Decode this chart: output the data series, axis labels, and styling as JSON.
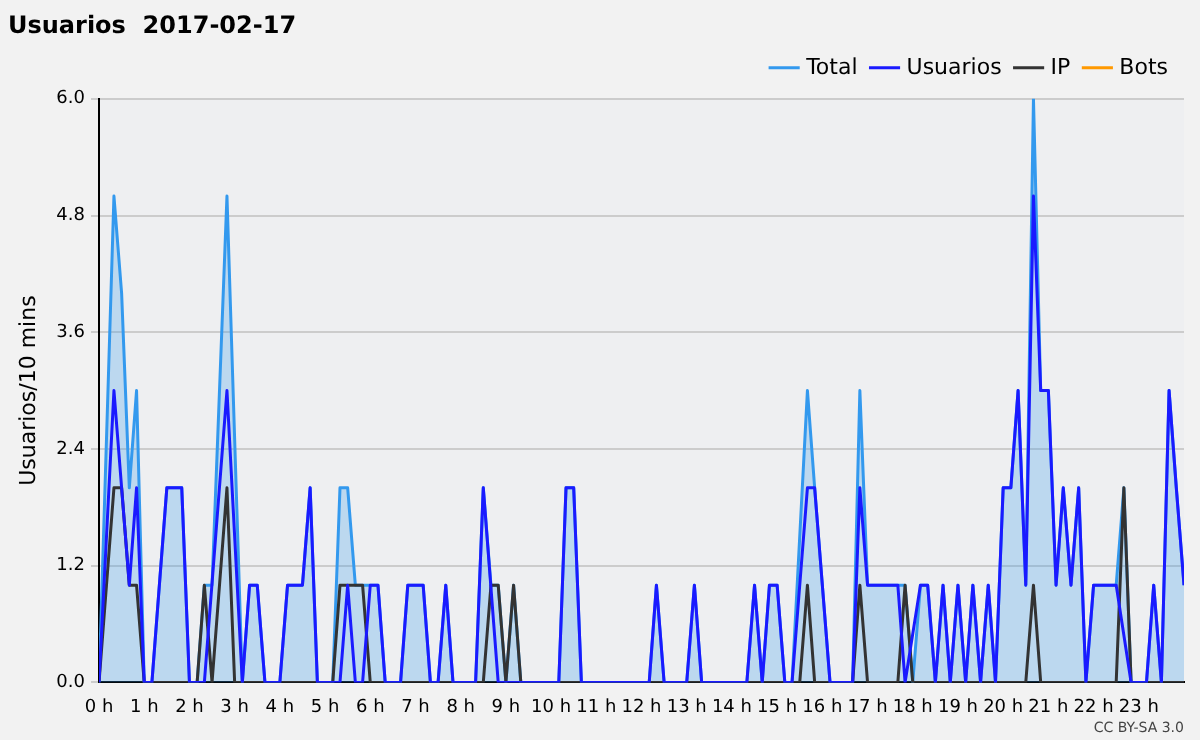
{
  "chart_data": {
    "type": "line",
    "title": "Usuarios  2017-02-17",
    "ylabel": "Usuarios/10 mins",
    "xlim": [
      0,
      24
    ],
    "xticks": [
      {
        "value": 0,
        "label": "0 h"
      },
      {
        "value": 1,
        "label": "1 h"
      },
      {
        "value": 2,
        "label": "2 h"
      },
      {
        "value": 3,
        "label": "3 h"
      },
      {
        "value": 4,
        "label": "4 h"
      },
      {
        "value": 5,
        "label": "5 h"
      },
      {
        "value": 6,
        "label": "6 h"
      },
      {
        "value": 7,
        "label": "7 h"
      },
      {
        "value": 8,
        "label": "8 h"
      },
      {
        "value": 9,
        "label": "9 h"
      },
      {
        "value": 10,
        "label": "10 h"
      },
      {
        "value": 11,
        "label": "11 h"
      },
      {
        "value": 12,
        "label": "12 h"
      },
      {
        "value": 13,
        "label": "13 h"
      },
      {
        "value": 14,
        "label": "14 h"
      },
      {
        "value": 15,
        "label": "15 h"
      },
      {
        "value": 16,
        "label": "16 h"
      },
      {
        "value": 17,
        "label": "17 h"
      },
      {
        "value": 18,
        "label": "18 h"
      },
      {
        "value": 19,
        "label": "19 h"
      },
      {
        "value": 20,
        "label": "20 h"
      },
      {
        "value": 21,
        "label": "21 h"
      },
      {
        "value": 22,
        "label": "22 h"
      },
      {
        "value": 23,
        "label": "23 h"
      }
    ],
    "ylim": [
      0,
      6
    ],
    "yticks": [
      {
        "value": 0,
        "label": "0.0"
      },
      {
        "value": 1.2,
        "label": "1.2"
      },
      {
        "value": 2.4,
        "label": "2.4"
      },
      {
        "value": 3.6,
        "label": "3.6"
      },
      {
        "value": 4.8,
        "label": "4.8"
      },
      {
        "value": 6,
        "label": "6.0"
      }
    ],
    "grid": "y",
    "legend": "top right",
    "annotations": [
      "CC BY-SA 3.0"
    ],
    "series": [
      {
        "name": "Total",
        "type": "area",
        "color": "#3399ee",
        "x": [
          0,
          0.33,
          0.5,
          0.67,
          0.83,
          1,
          1.17,
          1.5,
          1.83,
          2,
          2.17,
          2.33,
          2.5,
          2.83,
          3.17,
          3.33,
          3.5,
          3.67,
          4,
          4.17,
          4.5,
          4.67,
          4.83,
          5.17,
          5.33,
          5.5,
          5.67,
          6.17,
          6.33,
          6.67,
          6.83,
          7.17,
          7.33,
          7.5,
          7.67,
          7.83,
          8.33,
          8.5,
          8.67,
          8.83,
          9,
          9.17,
          9.33,
          10.17,
          10.33,
          10.5,
          10.67,
          12.17,
          12.33,
          12.5,
          13,
          13.17,
          13.33,
          14.33,
          14.5,
          14.67,
          14.83,
          15,
          15.17,
          15.33,
          15.67,
          15.83,
          16.17,
          16.67,
          16.83,
          17,
          17.67,
          17.83,
          18,
          18.17,
          18.33,
          18.5,
          18.67,
          18.83,
          19,
          19.17,
          19.33,
          19.5,
          19.67,
          19.83,
          20,
          20.17,
          20.33,
          20.5,
          20.67,
          20.83,
          21,
          21.17,
          21.33,
          21.5,
          21.67,
          21.83,
          22,
          22.5,
          22.67,
          22.83,
          23.17,
          23.33,
          23.5,
          23.67,
          23.83,
          24
        ],
        "values": [
          0,
          5,
          4,
          2,
          3,
          0,
          0,
          2,
          2,
          0,
          0,
          1,
          1,
          5,
          0,
          1,
          1,
          0,
          0,
          1,
          1,
          2,
          0,
          0,
          2,
          2,
          1,
          1,
          0,
          0,
          1,
          1,
          0,
          0,
          1,
          0,
          0,
          2,
          1,
          1,
          0,
          1,
          0,
          0,
          2,
          2,
          0,
          0,
          1,
          0,
          0,
          1,
          0,
          0,
          1,
          0,
          1,
          1,
          0,
          0,
          3,
          2,
          0,
          0,
          3,
          1,
          1,
          1,
          0,
          1,
          1,
          0,
          1,
          0,
          1,
          0,
          1,
          0,
          1,
          0,
          2,
          2,
          3,
          1,
          6,
          3,
          3,
          1,
          2,
          1,
          2,
          0,
          1,
          1,
          2,
          0,
          0,
          1,
          0,
          3,
          2,
          1
        ]
      },
      {
        "name": "Usuarios",
        "type": "line",
        "color": "#1a1aff",
        "x": [
          0,
          0.33,
          0.67,
          0.83,
          1,
          1.17,
          1.5,
          1.83,
          2,
          2.33,
          2.83,
          3.17,
          3.33,
          3.5,
          3.67,
          4,
          4.17,
          4.5,
          4.67,
          4.83,
          5.33,
          5.5,
          5.67,
          5.83,
          6,
          6.17,
          6.33,
          6.67,
          6.83,
          7.17,
          7.33,
          7.5,
          7.67,
          7.83,
          8.33,
          8.5,
          8.83,
          10.17,
          10.33,
          10.5,
          10.67,
          12.17,
          12.33,
          12.5,
          13,
          13.17,
          13.33,
          14.33,
          14.5,
          14.67,
          14.83,
          15,
          15.17,
          15.33,
          15.67,
          15.83,
          16.17,
          16.67,
          16.83,
          17,
          17.67,
          17.83,
          18.17,
          18.33,
          18.5,
          18.67,
          18.83,
          19,
          19.17,
          19.33,
          19.5,
          19.67,
          19.83,
          20,
          20.17,
          20.33,
          20.5,
          20.67,
          20.83,
          21,
          21.17,
          21.33,
          21.5,
          21.67,
          21.83,
          22,
          22.5,
          22.83,
          23.17,
          23.33,
          23.5,
          23.67,
          23.83,
          24
        ],
        "values": [
          0,
          3,
          1,
          2,
          0,
          0,
          2,
          2,
          0,
          0,
          3,
          0,
          1,
          1,
          0,
          0,
          1,
          1,
          2,
          0,
          0,
          1,
          0,
          0,
          1,
          1,
          0,
          0,
          1,
          1,
          0,
          0,
          1,
          0,
          0,
          2,
          0,
          0,
          2,
          2,
          0,
          0,
          1,
          0,
          0,
          1,
          0,
          0,
          1,
          0,
          1,
          1,
          0,
          0,
          2,
          2,
          0,
          0,
          2,
          1,
          1,
          0,
          1,
          1,
          0,
          1,
          0,
          1,
          0,
          1,
          0,
          1,
          0,
          2,
          2,
          3,
          1,
          5,
          3,
          3,
          1,
          2,
          1,
          2,
          0,
          1,
          1,
          0,
          0,
          1,
          0,
          3,
          2,
          1
        ]
      },
      {
        "name": "IP",
        "type": "line",
        "color": "#333333",
        "x": [
          0,
          0.33,
          0.5,
          0.67,
          0.83,
          1,
          2.17,
          2.33,
          2.5,
          2.83,
          3,
          5.17,
          5.33,
          5.83,
          6,
          8.5,
          8.67,
          8.83,
          9,
          9.17,
          9.33,
          15.5,
          15.67,
          15.83,
          16.67,
          16.83,
          17,
          17.67,
          17.83,
          18,
          20.5,
          20.67,
          20.83,
          22.5,
          22.67,
          22.83,
          24
        ],
        "values": [
          0,
          2,
          2,
          1,
          1,
          0,
          0,
          1,
          0,
          2,
          0,
          0,
          1,
          1,
          0,
          0,
          1,
          1,
          0,
          1,
          0,
          0,
          1,
          0,
          0,
          1,
          0,
          0,
          1,
          0,
          0,
          1,
          0,
          0,
          2,
          0,
          0
        ]
      },
      {
        "name": "Bots",
        "type": "line",
        "color": "#ff9900"
      }
    ]
  }
}
